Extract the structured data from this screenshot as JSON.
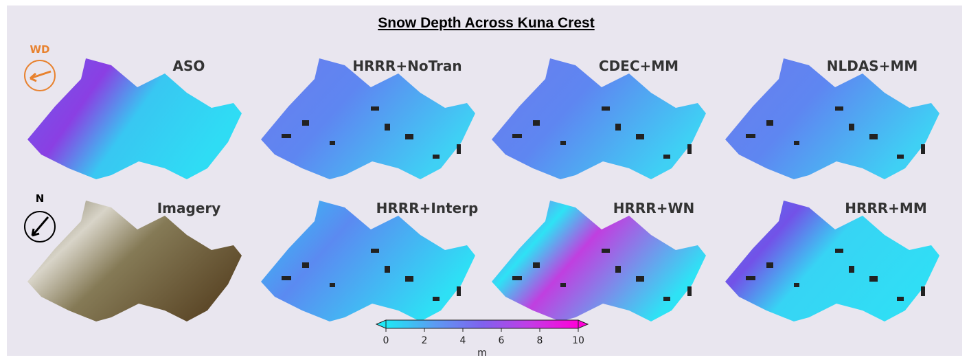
{
  "title": "Snow Depth Across Kuna Crest",
  "compass": {
    "wind": "WD",
    "north": "N"
  },
  "panels": [
    {
      "label": "ASO"
    },
    {
      "label": "HRRR+NoTran"
    },
    {
      "label": "CDEC+MM"
    },
    {
      "label": "NLDAS+MM"
    },
    {
      "label": "Imagery"
    },
    {
      "label": "HRRR+Interp"
    },
    {
      "label": "HRRR+WN"
    },
    {
      "label": "HRRR+MM"
    }
  ],
  "colorbar": {
    "ticks": [
      0,
      2,
      4,
      6,
      8,
      10
    ],
    "label": "m",
    "colors": [
      "#1ee8f5",
      "#5b9cf2",
      "#7f62ee",
      "#c33be6",
      "#ff00d8"
    ]
  }
}
